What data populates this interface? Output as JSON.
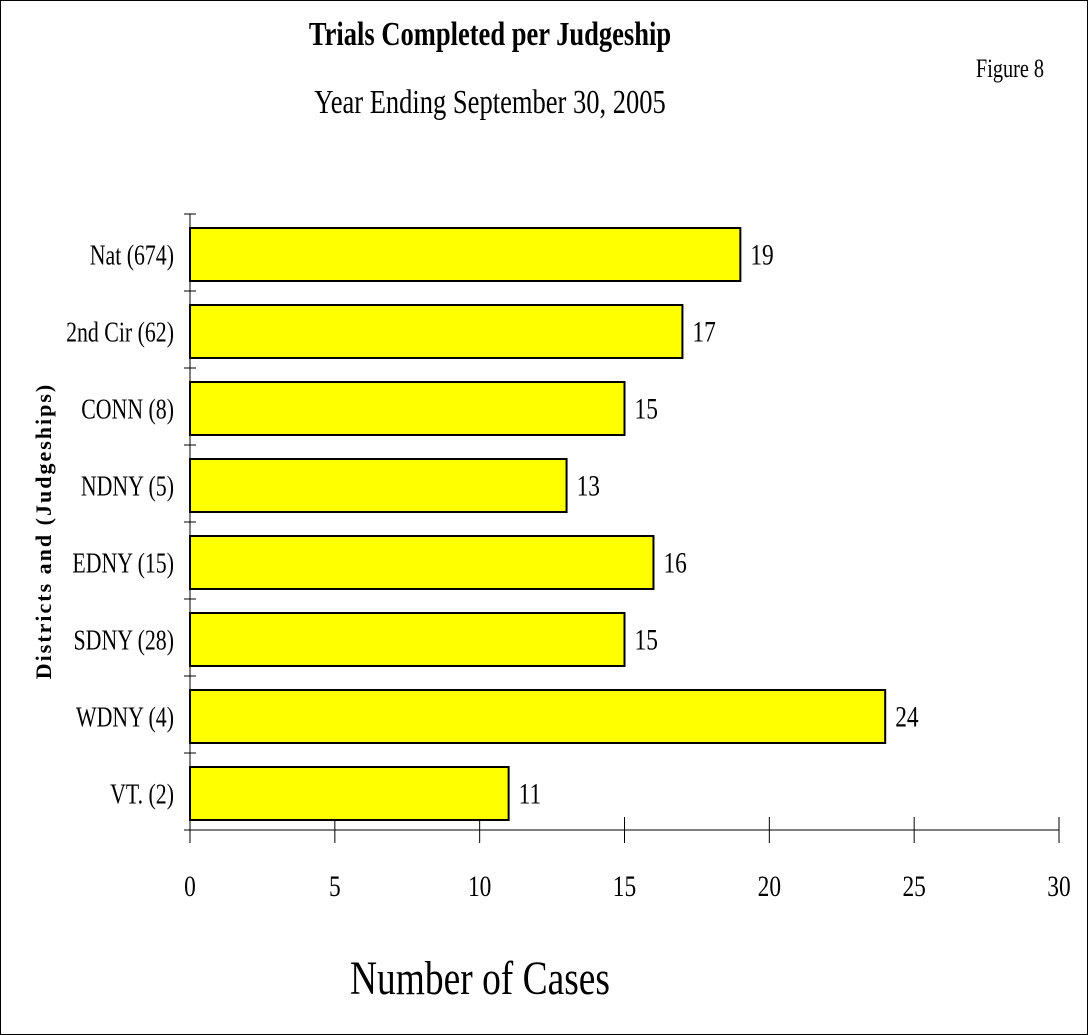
{
  "page": {
    "figure_label": "Figure 8"
  },
  "chart_data": {
    "type": "bar",
    "orientation": "horizontal",
    "title": "Trials Completed per Judgeship",
    "subtitle": "Year Ending September 30, 2005",
    "xlabel": "Number of Cases",
    "ylabel": "Districts and (Judgeships)",
    "categories": [
      "Nat (674)",
      "2nd Cir (62)",
      "CONN (8)",
      "NDNY (5)",
      "EDNY (15)",
      "SDNY (28)",
      "WDNY (4)",
      "VT. (2)"
    ],
    "values": [
      19,
      17,
      15,
      13,
      16,
      15,
      24,
      11
    ],
    "data_labels": [
      "19",
      "17",
      "15",
      "13",
      "16",
      "15",
      "24",
      "11"
    ],
    "xlim": [
      0,
      30
    ],
    "xticks": [
      0,
      5,
      10,
      15,
      20,
      25,
      30
    ],
    "xtick_labels": [
      "0",
      "5",
      "10",
      "15",
      "20",
      "25",
      "30"
    ],
    "grid": false,
    "legend": "none",
    "colors": {
      "bar_fill": "#FFFF00",
      "bar_stroke": "#000000"
    }
  }
}
